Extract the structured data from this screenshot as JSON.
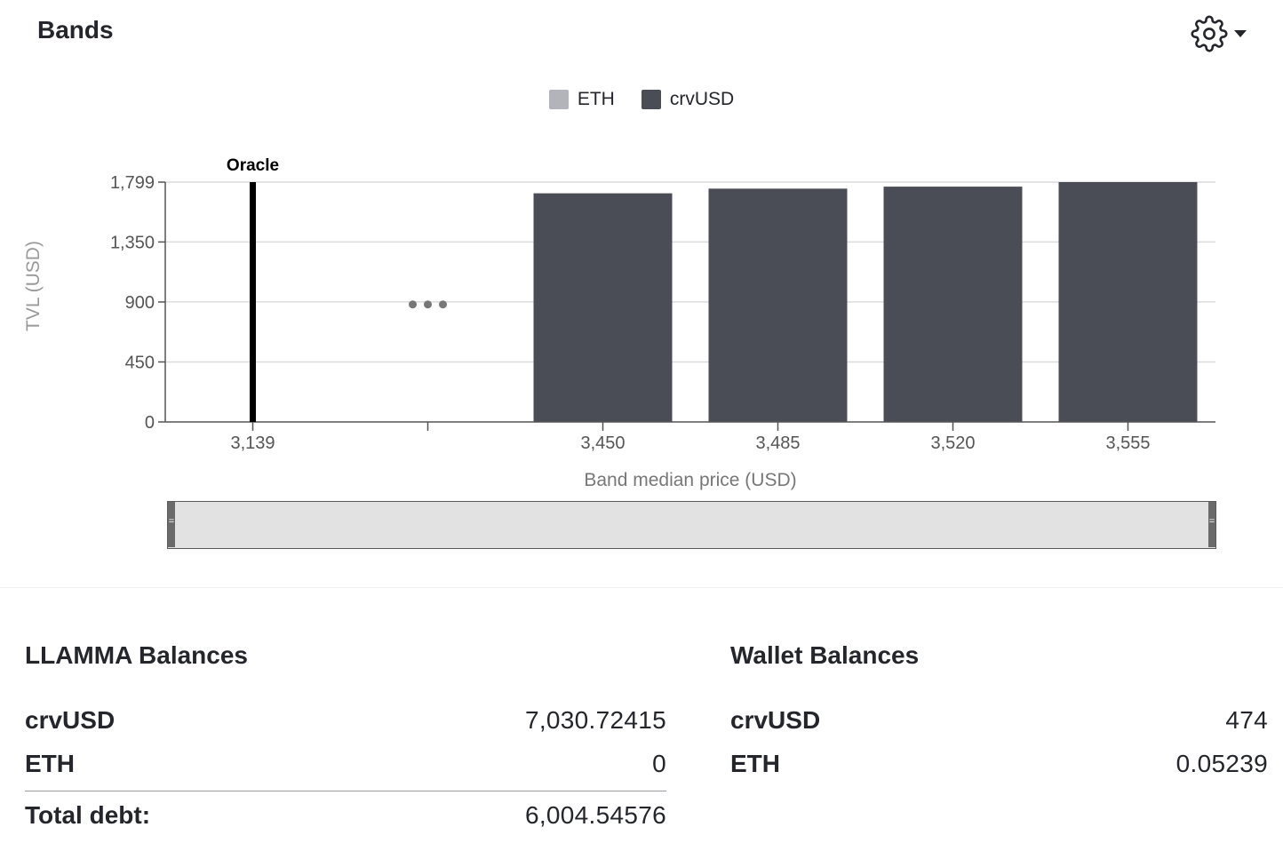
{
  "header": {
    "title": "Bands"
  },
  "icons": {
    "settings": "gear-icon",
    "dropdown": "caret-down-icon"
  },
  "colors": {
    "eth": "#b3b4ba",
    "crvusd": "#4a4d55",
    "oracle": "#000000",
    "grid": "#dcdcdc"
  },
  "legend": [
    {
      "label": "ETH",
      "color": "#b3b4ba"
    },
    {
      "label": "crvUSD",
      "color": "#4a4d55"
    }
  ],
  "chart_data": {
    "type": "bar",
    "ylabel": "TVL (USD)",
    "xlabel": "Band median price (USD)",
    "ylim": [
      0,
      1799
    ],
    "yticks": [
      "0",
      "450",
      "900",
      "1,350",
      "1,799"
    ],
    "ytick_values": [
      0,
      450,
      900,
      1350,
      1799
    ],
    "categories": [
      "3,139",
      "",
      "3,450",
      "3,485",
      "3,520",
      "3,555"
    ],
    "series": [
      {
        "name": "ETH",
        "values": [
          0,
          0,
          0,
          0,
          0,
          0
        ]
      },
      {
        "name": "crvUSD",
        "values": [
          0,
          0,
          1715,
          1750,
          1765,
          1799
        ]
      }
    ],
    "oracle": {
      "label": "Oracle",
      "category": "3,139"
    },
    "gap_marker": "•••",
    "grid": true,
    "legend_position": "top-center"
  },
  "llamma": {
    "title": "LLAMMA Balances",
    "rows": [
      {
        "label": "crvUSD",
        "value": "7,030.72415"
      },
      {
        "label": "ETH",
        "value": "0"
      }
    ],
    "total": {
      "label": "Total debt:",
      "value": "6,004.54576"
    }
  },
  "wallet": {
    "title": "Wallet Balances",
    "rows": [
      {
        "label": "crvUSD",
        "value": "474"
      },
      {
        "label": "ETH",
        "value": "0.05239"
      }
    ]
  }
}
